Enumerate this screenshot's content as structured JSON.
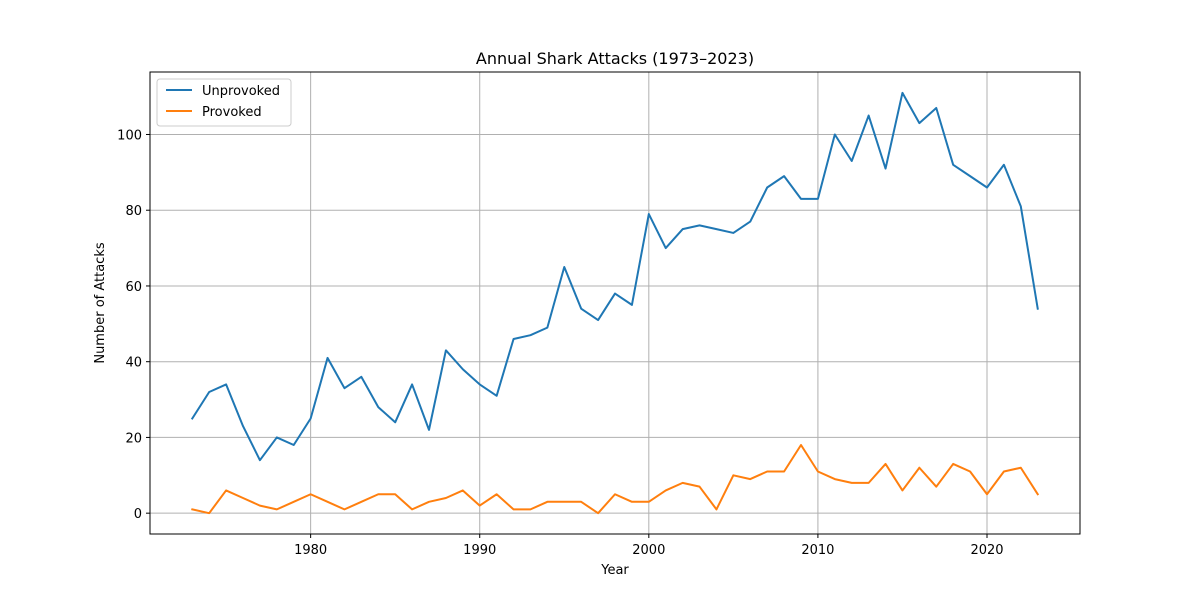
{
  "chart_data": {
    "type": "line",
    "title": "Annual Shark Attacks (1973–2023)",
    "xlabel": "Year",
    "ylabel": "Number of Attacks",
    "xlim": [
      1970.5,
      2025.5
    ],
    "ylim": [
      -5.5,
      116.5
    ],
    "xticks": [
      1980,
      1990,
      2000,
      2010,
      2020
    ],
    "yticks": [
      0,
      20,
      40,
      60,
      80,
      100
    ],
    "grid": true,
    "legend_position": "top-left",
    "x": [
      1973,
      1974,
      1975,
      1976,
      1977,
      1978,
      1979,
      1980,
      1981,
      1982,
      1983,
      1984,
      1985,
      1986,
      1987,
      1988,
      1989,
      1990,
      1991,
      1992,
      1993,
      1994,
      1995,
      1996,
      1997,
      1998,
      1999,
      2000,
      2001,
      2002,
      2003,
      2004,
      2005,
      2006,
      2007,
      2008,
      2009,
      2010,
      2011,
      2012,
      2013,
      2014,
      2015,
      2016,
      2017,
      2018,
      2019,
      2020,
      2021,
      2022,
      2023
    ],
    "series": [
      {
        "name": "Unprovoked",
        "color": "#1f77b4",
        "values": [
          25,
          32,
          34,
          23,
          14,
          20,
          18,
          25,
          41,
          33,
          36,
          28,
          24,
          34,
          22,
          43,
          38,
          34,
          31,
          46,
          47,
          49,
          65,
          54,
          51,
          58,
          55,
          79,
          70,
          75,
          76,
          75,
          74,
          77,
          86,
          89,
          83,
          83,
          100,
          93,
          105,
          91,
          111,
          103,
          107,
          92,
          89,
          86,
          92,
          81,
          54
        ]
      },
      {
        "name": "Provoked",
        "color": "#ff7f0e",
        "values": [
          1,
          0,
          6,
          4,
          2,
          1,
          3,
          5,
          3,
          1,
          3,
          5,
          5,
          1,
          3,
          4,
          6,
          2,
          5,
          1,
          1,
          3,
          3,
          3,
          0,
          5,
          3,
          3,
          6,
          8,
          7,
          1,
          10,
          9,
          11,
          11,
          18,
          11,
          9,
          8,
          8,
          13,
          6,
          12,
          7,
          13,
          11,
          5,
          11,
          12,
          5
        ]
      }
    ]
  }
}
